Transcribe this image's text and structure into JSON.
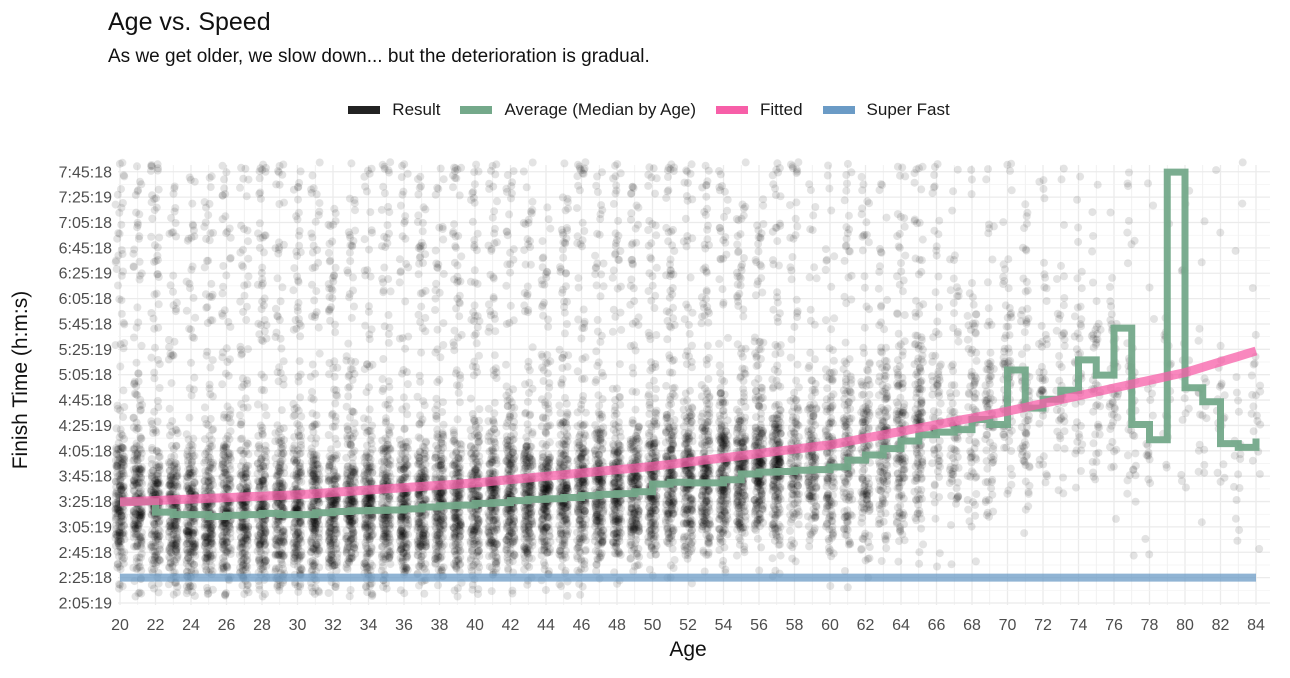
{
  "title": "Age vs. Speed",
  "subtitle": "As we get older, we slow down... but the deterioration is gradual.",
  "legend": [
    {
      "label": "Result",
      "color": "#222222"
    },
    {
      "label": "Average (Median by Age)",
      "color": "#74a98a"
    },
    {
      "label": "Fitted",
      "color": "#f75fa8"
    },
    {
      "label": "Super Fast",
      "color": "#6b9bc6"
    }
  ],
  "chart_data": {
    "type": "scatter",
    "title": "Age vs. Speed",
    "subtitle": "As we get older, we slow down... but the deterioration is gradual.",
    "xlabel": "Age",
    "ylabel": "Finish Time (h:m:s)",
    "xlim": [
      20,
      84
    ],
    "ylim_seconds": [
      7519,
      28380
    ],
    "grid": true,
    "legend_position": "top",
    "x_ticks": [
      "20",
      "22",
      "24",
      "26",
      "28",
      "30",
      "32",
      "34",
      "36",
      "38",
      "40",
      "42",
      "44",
      "46",
      "48",
      "50",
      "52",
      "54",
      "56",
      "58",
      "60",
      "62",
      "64",
      "66",
      "68",
      "70",
      "72",
      "74",
      "76",
      "78",
      "80",
      "82",
      "84"
    ],
    "y_ticks": [
      "2:05:19",
      "2:25:18",
      "2:45:18",
      "3:05:19",
      "3:25:18",
      "3:45:18",
      "4:05:18",
      "4:25:19",
      "4:45:18",
      "5:05:18",
      "5:25:19",
      "5:45:18",
      "6:05:18",
      "6:25:19",
      "6:45:18",
      "7:05:18",
      "7:25:19",
      "7:45:18"
    ],
    "series": [
      {
        "name": "Average (Median by Age)",
        "type": "step",
        "color": "#74a98a",
        "x": [
          20,
          21,
          22,
          23,
          24,
          25,
          26,
          27,
          28,
          29,
          30,
          31,
          32,
          33,
          34,
          35,
          36,
          37,
          38,
          39,
          40,
          41,
          42,
          43,
          44,
          45,
          46,
          47,
          48,
          49,
          50,
          51,
          52,
          53,
          54,
          55,
          56,
          57,
          58,
          59,
          60,
          61,
          62,
          63,
          64,
          65,
          66,
          67,
          68,
          69,
          70,
          71,
          72,
          73,
          74,
          75,
          76,
          77,
          78,
          79,
          80,
          81,
          82,
          83,
          84
        ],
        "y": [
          "3:25:00",
          "3:25:00",
          "3:17:00",
          "3:15:00",
          "3:15:00",
          "3:13:30",
          "3:14:30",
          "3:15:00",
          "3:16:00",
          "3:15:00",
          "3:15:00",
          "3:16:30",
          "3:17:30",
          "3:18:00",
          "3:18:20",
          "3:18:40",
          "3:19:30",
          "3:21:00",
          "3:22:00",
          "3:22:30",
          "3:23:50",
          "3:24:30",
          "3:26:00",
          "3:27:00",
          "3:27:30",
          "3:28:30",
          "3:30:00",
          "3:31:00",
          "3:31:30",
          "3:33:00",
          "3:39:00",
          "3:40:30",
          "3:40:00",
          "3:40:00",
          "3:42:30",
          "3:47:00",
          "3:48:30",
          "3:49:00",
          "3:50:00",
          "3:50:30",
          "3:52:30",
          "3:58:00",
          "4:02:00",
          "4:07:00",
          "4:13:00",
          "4:18:00",
          "4:20:00",
          "4:22:00",
          "4:30:00",
          "4:26:00",
          "5:09:00",
          "4:39:00",
          "4:46:00",
          "4:53:00",
          "5:17:00",
          "5:05:00",
          "5:42:00",
          "4:26:00",
          "4:14:00",
          "7:45:00",
          "4:55:00",
          "4:44:00",
          "4:11:00",
          "4:08:00",
          "4:15:00"
        ]
      },
      {
        "name": "Fitted",
        "type": "line",
        "color": "#f75fa8",
        "x": [
          20,
          30,
          40,
          50,
          60,
          70,
          80,
          84
        ],
        "y": [
          "3:25:00",
          "3:30:40",
          "3:40:00",
          "3:53:00",
          "4:10:00",
          "4:36:30",
          "5:07:00",
          "5:24:00"
        ]
      },
      {
        "name": "Super Fast",
        "type": "hline",
        "color": "#6b9bc6",
        "x": [
          20,
          84
        ],
        "y": [
          "2:25:18",
          "2:25:18"
        ]
      }
    ],
    "result_points": "dense semi-transparent black scatter of individual finish times per integer age (20–84), densest between ages 20–58 and roughly 2:05 to 4:30"
  }
}
